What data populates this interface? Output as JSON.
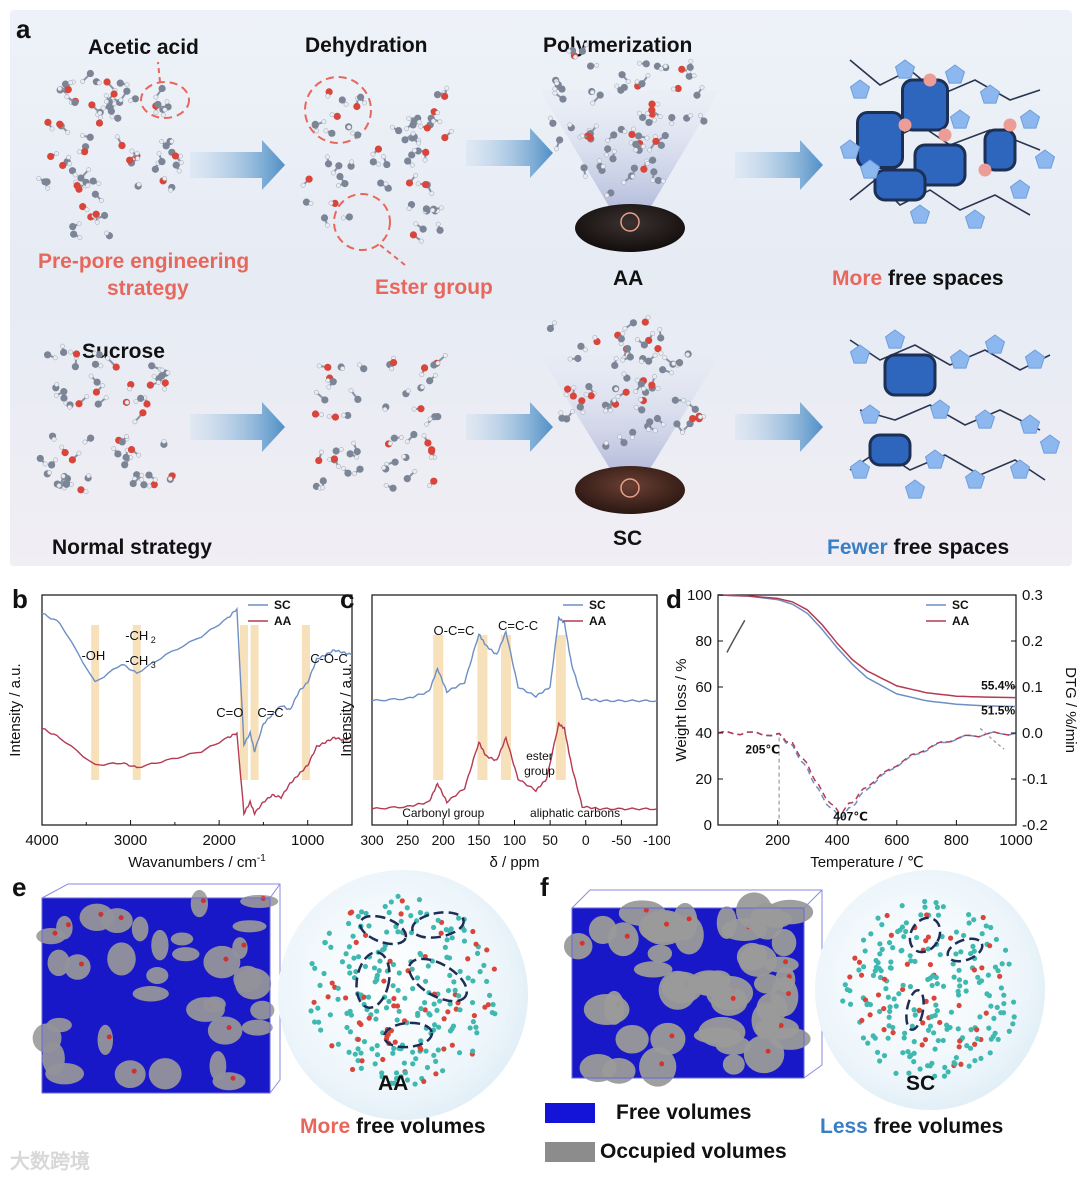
{
  "panel_a": {
    "letter": "a",
    "top_row": {
      "acid_label": "Acetic acid",
      "dehydration_label": "Dehydration",
      "polymerization_label": "Polymerization",
      "strategy_label_line1": "Pre-pore engineering",
      "strategy_label_line2": "strategy",
      "ester_label": "Ester group",
      "product_label": "AA",
      "result_emph": "More",
      "result_rest": " free spaces"
    },
    "bottom_row": {
      "sucrose_label": "Sucrose",
      "strategy_label": "Normal strategy",
      "product_label": "SC",
      "result_emph": "Fewer",
      "result_rest": " free spaces"
    }
  },
  "panel_b": {
    "letter": "b",
    "ylabel": "Intensity / a.u.",
    "xlabel": "Wavanumbers / cm",
    "xlabel_sup": "-1",
    "x_ticks": [
      "4000",
      "3000",
      "2000",
      "1000"
    ],
    "annotations": [
      "-OH",
      "-CH",
      "-CH",
      "C=O",
      "C=C",
      "C-O-C"
    ],
    "legend": [
      "SC",
      "AA"
    ]
  },
  "panel_c": {
    "letter": "c",
    "ylabel": "Intensity / a.u.",
    "xlabel": "δ / ppm",
    "x_ticks": [
      "300",
      "250",
      "200",
      "150",
      "100",
      "50",
      "0",
      "-50",
      "-100"
    ],
    "annotations": [
      "O-C=C",
      "C=C-C",
      "ester",
      "group",
      "Carbonyl group",
      "aliphatic carbons"
    ],
    "legend": [
      "SC",
      "AA"
    ]
  },
  "panel_d": {
    "letter": "d",
    "ylabel_left": "Weight loss / %",
    "ylabel_right": "DTG / %/min",
    "xlabel": "Temperature / ℃",
    "x_ticks": [
      "200",
      "400",
      "600",
      "800",
      "1000"
    ],
    "y_ticks_left": [
      "0",
      "20",
      "40",
      "60",
      "80",
      "100"
    ],
    "y_ticks_right": [
      "-0.2",
      "-0.1",
      "0.0",
      "0.1",
      "0.2",
      "0.3"
    ],
    "annotations": [
      "205℃",
      "407℃",
      "55.4%",
      "51.5%"
    ],
    "legend": [
      "SC",
      "AA"
    ]
  },
  "panel_e": {
    "letter": "e",
    "sphere_label": "AA",
    "caption_emph": "More",
    "caption_rest": " free volumes"
  },
  "panel_f": {
    "letter": "f",
    "sphere_label": "SC",
    "caption_emph": "Less",
    "caption_rest": " free volumes"
  },
  "legend_ef": {
    "free": "Free volumes",
    "occupied": "Occupied volumes",
    "free_color": "#1414d8",
    "occupied_color": "#8c8c8c"
  },
  "watermark": "大数跨境",
  "colors": {
    "sc": "#6e8fc4",
    "aa": "#b53a52",
    "highlight": "#f6dcae",
    "accent_red": "#e8675c",
    "accent_blue": "#3a7fc4"
  },
  "chart_data": [
    {
      "type": "line",
      "panel": "b",
      "xlabel": "Wavanumbers / cm-1",
      "ylabel": "Intensity / a.u.",
      "xlim": [
        4000,
        500
      ],
      "series": [
        {
          "name": "SC",
          "x": [
            4000,
            3800,
            3400,
            3100,
            2930,
            2600,
            2200,
            1900,
            1800,
            1720,
            1650,
            1600,
            1500,
            1400,
            1300,
            1200,
            1100,
            1000,
            900,
            800,
            700,
            600,
            500
          ],
          "y": [
            0.92,
            0.88,
            0.62,
            0.7,
            0.66,
            0.74,
            0.82,
            0.9,
            0.94,
            0.35,
            0.4,
            0.32,
            0.44,
            0.48,
            0.52,
            0.5,
            0.58,
            0.62,
            0.72,
            0.74,
            0.76,
            0.75,
            0.74
          ]
        },
        {
          "name": "AA",
          "x": [
            4000,
            3800,
            3400,
            3100,
            2930,
            2600,
            2200,
            1900,
            1800,
            1720,
            1650,
            1600,
            1500,
            1400,
            1300,
            1200,
            1100,
            1000,
            900,
            800,
            700,
            600,
            500
          ],
          "y": [
            0.42,
            0.38,
            0.26,
            0.27,
            0.25,
            0.28,
            0.32,
            0.38,
            0.4,
            0.05,
            0.1,
            0.05,
            0.1,
            0.13,
            0.12,
            0.18,
            0.22,
            0.26,
            0.34,
            0.36,
            0.38,
            0.37,
            0.38
          ]
        }
      ]
    },
    {
      "type": "line",
      "panel": "c",
      "xlabel": "δ / ppm",
      "ylabel": "Intensity / a.u.",
      "xlim": [
        300,
        -100
      ],
      "series": [
        {
          "name": "SC",
          "x": [
            300,
            250,
            220,
            208,
            195,
            170,
            150,
            140,
            125,
            112,
            95,
            70,
            50,
            38,
            30,
            20,
            5,
            -20,
            -60,
            -100
          ],
          "y": [
            0.54,
            0.55,
            0.58,
            0.68,
            0.58,
            0.62,
            0.83,
            0.78,
            0.74,
            0.84,
            0.6,
            0.56,
            0.6,
            0.9,
            0.88,
            0.7,
            0.55,
            0.54,
            0.54,
            0.54
          ]
        },
        {
          "name": "AA",
          "x": [
            300,
            250,
            220,
            208,
            195,
            170,
            150,
            140,
            125,
            112,
            95,
            70,
            55,
            38,
            30,
            20,
            5,
            -20,
            -60,
            -100
          ],
          "y": [
            0.07,
            0.08,
            0.1,
            0.18,
            0.1,
            0.16,
            0.36,
            0.3,
            0.28,
            0.38,
            0.2,
            0.15,
            0.2,
            0.44,
            0.42,
            0.26,
            0.08,
            0.07,
            0.07,
            0.07
          ]
        }
      ]
    },
    {
      "type": "line",
      "panel": "d",
      "xlabel": "Temperature / ℃",
      "ylabel": "Weight loss / %",
      "ylabel_right": "DTG / %/min",
      "xlim": [
        0,
        1000
      ],
      "ylim": [
        0,
        100
      ],
      "ylim_right": [
        -0.2,
        0.3
      ],
      "series": [
        {
          "name": "SC",
          "axis": "left",
          "x": [
            0,
            100,
            200,
            250,
            300,
            350,
            400,
            450,
            500,
            600,
            700,
            800,
            900,
            1000
          ],
          "y": [
            100,
            99.5,
            98,
            96,
            92,
            85,
            77,
            70,
            64,
            57,
            54,
            52.5,
            51.8,
            51.5
          ]
        },
        {
          "name": "AA",
          "axis": "left",
          "x": [
            0,
            100,
            200,
            250,
            300,
            350,
            400,
            450,
            500,
            600,
            700,
            800,
            900,
            1000
          ],
          "y": [
            100,
            99.6,
            98.5,
            97,
            93.5,
            87,
            79,
            72,
            67,
            60.5,
            57.5,
            56,
            55.6,
            55.4
          ]
        },
        {
          "name": "SC",
          "axis": "right",
          "x": [
            0,
            100,
            205,
            250,
            300,
            350,
            407,
            450,
            500,
            600,
            700,
            800,
            900,
            1000
          ],
          "y": [
            0.0,
            0.0,
            -0.005,
            -0.03,
            -0.08,
            -0.14,
            -0.185,
            -0.16,
            -0.12,
            -0.07,
            -0.035,
            -0.012,
            -0.002,
            0.0
          ]
        },
        {
          "name": "AA",
          "axis": "right",
          "x": [
            0,
            100,
            205,
            250,
            300,
            350,
            407,
            450,
            500,
            600,
            700,
            800,
            900,
            1000
          ],
          "y": [
            0.0,
            0.0,
            -0.004,
            -0.025,
            -0.07,
            -0.13,
            -0.175,
            -0.15,
            -0.115,
            -0.068,
            -0.033,
            -0.011,
            -0.002,
            0.0
          ]
        }
      ]
    }
  ]
}
